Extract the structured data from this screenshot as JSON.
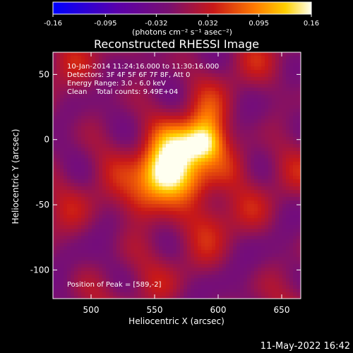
{
  "chart_data": {
    "type": "heatmap",
    "title": "Reconstructed RHESSI Image",
    "xlabel": "Heliocentric X (arcsec)",
    "ylabel": "Heliocentric Y (arcsec)",
    "xlim": [
      470,
      665
    ],
    "ylim": [
      -122,
      67
    ],
    "xticks": [
      500,
      550,
      600,
      650
    ],
    "yticks": [
      50,
      0,
      -50,
      -100
    ],
    "colorbar": {
      "ticks": [
        "-0.16",
        "-0.095",
        "-0.032",
        "0.032",
        "0.095",
        "0.16"
      ],
      "range": [
        -0.16,
        0.16
      ],
      "units": "(photons cm⁻² s⁻¹ asec⁻²)"
    },
    "annotations": [
      "10-Jan-2014 11:24:16.000 to 11:30:16.000",
      "Detectors: 3F 4F 5F 6F 7F 8F, Att 0",
      "Energy Range: 3.0 - 6.0 keV",
      "Clean    Total counts: 9.49E+04"
    ],
    "peak_label": "Position of Peak = [589,-2]",
    "peak": [
      589,
      -2
    ],
    "sources": [
      {
        "x": 589,
        "y": -2,
        "amplitude": 0.16,
        "sigma": 11
      },
      {
        "x": 557,
        "y": -27,
        "amplitude": 0.155,
        "sigma": 13
      },
      {
        "x": 568,
        "y": -8,
        "amplitude": 0.1,
        "sigma": 13
      },
      {
        "x": 578,
        "y": -32,
        "amplitude": 0.06,
        "sigma": 14
      },
      {
        "x": 540,
        "y": -48,
        "amplitude": 0.06,
        "sigma": 13
      },
      {
        "x": 592,
        "y": 17,
        "amplitude": 0.04,
        "sigma": 10
      },
      {
        "x": 607,
        "y": -20,
        "amplitude": 0.035,
        "sigma": 12
      },
      {
        "x": 596,
        "y": -60,
        "amplitude": 0.03,
        "sigma": 12
      }
    ]
  },
  "timestamp": "11-May-2022 16:42"
}
